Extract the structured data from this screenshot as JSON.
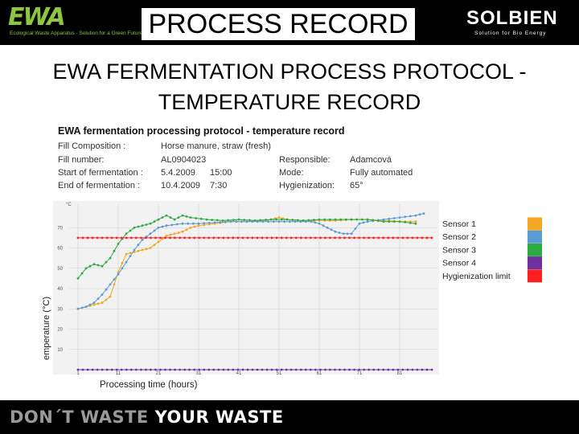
{
  "header": {
    "title": "PROCESS RECORD",
    "left_logo": {
      "name": "EWA",
      "tagline": "Ecological Waste Apparatus · Solution for a Green Future"
    },
    "right_logo": {
      "name": "SOLBIEN",
      "tagline": "Solution for Bio Energy"
    }
  },
  "subtitle_line1": "EWA FERMENTATION PROCESS PROTOCOL -",
  "subtitle_line2": "TEMPERATURE RECORD",
  "record": {
    "title": "EWA fermentation processing protocol - temperature record",
    "fill_composition_label": "Fill Composition :",
    "fill_composition_value": "Horse manure, straw (fresh)",
    "fill_number_label": "Fill number:",
    "fill_number_value": "AL0904023",
    "responsible_label": "Responsible:",
    "responsible_value": "Adamcová",
    "start_label": "Start of fermentation :",
    "start_date": "5.4.2009",
    "start_time": "15:00",
    "mode_label": "Mode:",
    "mode_value": "Fully automated",
    "end_label": "End of fermentation :",
    "end_date": "10.4.2009",
    "end_time": "7:30",
    "hygienization_label": "Hygienization:",
    "hygienization_value": "65°"
  },
  "footer": {
    "slogan_part1": "DON´T WASTE ",
    "slogan_part2": "YOUR WASTE"
  },
  "colors": {
    "sensor1": "#f5a623",
    "sensor2": "#5b9bd5",
    "sensor3": "#2eaa44",
    "sensor4": "#7030a0",
    "hygienization": "#ff1f1f",
    "header_bg": "#000000",
    "ewa_green": "#8dc63f"
  },
  "chart_data": {
    "type": "line",
    "ylabel": "emperature (°C)",
    "xlabel": "Processing time (hours)",
    "y_unit": "°C",
    "ylim": [
      0,
      80
    ],
    "xlim": [
      0,
      90
    ],
    "yticks": [
      "10",
      "20",
      "30",
      "40",
      "50",
      "60",
      "70"
    ],
    "xticks": [
      "1",
      "11",
      "21",
      "31",
      "41",
      "51",
      "61",
      "71",
      "81"
    ],
    "grid": true,
    "legend_position": "right",
    "series": [
      {
        "name": "Sensor 1",
        "color": "#f5a623",
        "points": [
          [
            1,
            30
          ],
          [
            3,
            31
          ],
          [
            5,
            32
          ],
          [
            7,
            33
          ],
          [
            9,
            36
          ],
          [
            11,
            48
          ],
          [
            13,
            57
          ],
          [
            15,
            58
          ],
          [
            17,
            59
          ],
          [
            19,
            60
          ],
          [
            21,
            63
          ],
          [
            23,
            66
          ],
          [
            25,
            67
          ],
          [
            27,
            68
          ],
          [
            29,
            70
          ],
          [
            31,
            71
          ],
          [
            35,
            72
          ],
          [
            39,
            73
          ],
          [
            43,
            73
          ],
          [
            47,
            73.5
          ],
          [
            49,
            74
          ],
          [
            51,
            75
          ],
          [
            53,
            74
          ],
          [
            57,
            73.5
          ],
          [
            61,
            73.5
          ],
          [
            65,
            73.5
          ],
          [
            69,
            74
          ],
          [
            73,
            74
          ],
          [
            77,
            73.5
          ],
          [
            81,
            73
          ],
          [
            85,
            73
          ]
        ]
      },
      {
        "name": "Sensor 2",
        "color": "#5b9bd5",
        "points": [
          [
            1,
            30
          ],
          [
            3,
            31
          ],
          [
            5,
            33
          ],
          [
            7,
            37
          ],
          [
            9,
            42
          ],
          [
            11,
            47
          ],
          [
            13,
            53
          ],
          [
            15,
            59
          ],
          [
            17,
            64
          ],
          [
            19,
            67
          ],
          [
            21,
            70
          ],
          [
            23,
            71
          ],
          [
            27,
            72
          ],
          [
            31,
            72
          ],
          [
            35,
            72.5
          ],
          [
            39,
            73
          ],
          [
            43,
            73
          ],
          [
            47,
            73
          ],
          [
            51,
            73
          ],
          [
            55,
            73
          ],
          [
            59,
            73
          ],
          [
            61,
            72
          ],
          [
            63,
            70
          ],
          [
            65,
            68
          ],
          [
            67,
            67
          ],
          [
            69,
            67
          ],
          [
            71,
            72
          ],
          [
            73,
            73
          ],
          [
            77,
            74
          ],
          [
            81,
            75
          ],
          [
            85,
            76
          ],
          [
            87,
            77
          ]
        ]
      },
      {
        "name": "Sensor 3",
        "color": "#2eaa44",
        "points": [
          [
            1,
            45
          ],
          [
            3,
            50
          ],
          [
            5,
            52
          ],
          [
            7,
            51
          ],
          [
            9,
            55
          ],
          [
            11,
            62
          ],
          [
            13,
            67
          ],
          [
            15,
            70
          ],
          [
            17,
            71
          ],
          [
            19,
            72
          ],
          [
            21,
            74
          ],
          [
            23,
            76
          ],
          [
            25,
            74
          ],
          [
            27,
            76
          ],
          [
            29,
            75
          ],
          [
            33,
            74
          ],
          [
            37,
            73.5
          ],
          [
            41,
            74
          ],
          [
            45,
            73.5
          ],
          [
            49,
            74
          ],
          [
            53,
            74
          ],
          [
            57,
            73.5
          ],
          [
            61,
            74
          ],
          [
            65,
            74
          ],
          [
            69,
            74
          ],
          [
            73,
            74
          ],
          [
            77,
            73
          ],
          [
            81,
            73
          ],
          [
            85,
            72
          ]
        ]
      },
      {
        "name": "Sensor 4",
        "color": "#7030a0",
        "points": [
          [
            1,
            0
          ],
          [
            89,
            0
          ]
        ]
      },
      {
        "name": "Hygienization limit",
        "color": "#ff1f1f",
        "points": [
          [
            1,
            65
          ],
          [
            89,
            65
          ]
        ]
      }
    ]
  }
}
